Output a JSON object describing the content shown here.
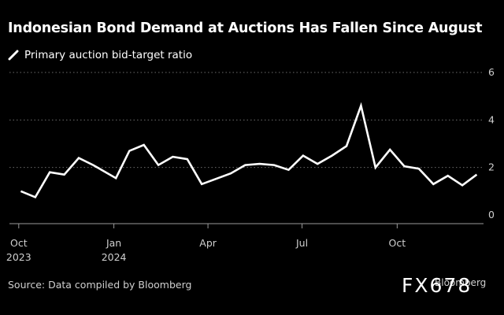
{
  "title": "Indonesian Bond Demand at Auctions Has Fallen Since August",
  "source": "Source: Data compiled by Bloomberg",
  "brand": "Bloomberg",
  "watermark": "FX678",
  "colors": {
    "background": "#000000",
    "line": "#ffffff",
    "grid": "#6b6b6b",
    "tick_text": "#cfcfcf"
  },
  "chart_data": {
    "type": "line",
    "title": "Indonesian Bond Demand at Auctions Has Fallen Since August",
    "legend_position": "top-left",
    "grid": true,
    "ylim": [
      0,
      6
    ],
    "yticks": [
      0,
      2,
      4,
      6
    ],
    "y_axis_side": "right",
    "xlim": [
      "2023-09-22",
      "2024-12-22"
    ],
    "xticks": [
      {
        "date": "2023-10-01",
        "label": [
          "Oct",
          "2023"
        ]
      },
      {
        "date": "2024-01-01",
        "label": [
          "Jan",
          "2024"
        ]
      },
      {
        "date": "2024-04-01",
        "label": [
          "Apr"
        ]
      },
      {
        "date": "2024-07-01",
        "label": [
          "Jul"
        ]
      },
      {
        "date": "2024-10-01",
        "label": [
          "Oct"
        ]
      }
    ],
    "series": [
      {
        "name": "Primary auction bid-target ratio",
        "color": "#ffffff",
        "points": [
          {
            "x": "2023-10-03",
            "y": 1.0
          },
          {
            "x": "2023-10-17",
            "y": 0.75
          },
          {
            "x": "2023-10-31",
            "y": 1.8
          },
          {
            "x": "2023-11-14",
            "y": 1.7
          },
          {
            "x": "2023-11-28",
            "y": 2.4
          },
          {
            "x": "2023-12-12",
            "y": 2.1
          },
          {
            "x": "2024-01-03",
            "y": 1.55
          },
          {
            "x": "2024-01-16",
            "y": 2.7
          },
          {
            "x": "2024-01-30",
            "y": 2.95
          },
          {
            "x": "2024-02-13",
            "y": 2.1
          },
          {
            "x": "2024-02-27",
            "y": 2.45
          },
          {
            "x": "2024-03-12",
            "y": 2.35
          },
          {
            "x": "2024-03-26",
            "y": 1.3
          },
          {
            "x": "2024-04-23",
            "y": 1.75
          },
          {
            "x": "2024-05-07",
            "y": 2.1
          },
          {
            "x": "2024-05-21",
            "y": 2.15
          },
          {
            "x": "2024-06-04",
            "y": 2.1
          },
          {
            "x": "2024-06-18",
            "y": 1.9
          },
          {
            "x": "2024-07-02",
            "y": 2.5
          },
          {
            "x": "2024-07-16",
            "y": 2.15
          },
          {
            "x": "2024-07-30",
            "y": 2.5
          },
          {
            "x": "2024-08-13",
            "y": 2.9
          },
          {
            "x": "2024-08-27",
            "y": 4.6
          },
          {
            "x": "2024-09-10",
            "y": 2.0
          },
          {
            "x": "2024-09-24",
            "y": 2.75
          },
          {
            "x": "2024-10-08",
            "y": 2.05
          },
          {
            "x": "2024-10-22",
            "y": 1.95
          },
          {
            "x": "2024-11-05",
            "y": 1.3
          },
          {
            "x": "2024-11-19",
            "y": 1.65
          },
          {
            "x": "2024-12-03",
            "y": 1.25
          },
          {
            "x": "2024-12-17",
            "y": 1.7
          }
        ]
      }
    ]
  }
}
